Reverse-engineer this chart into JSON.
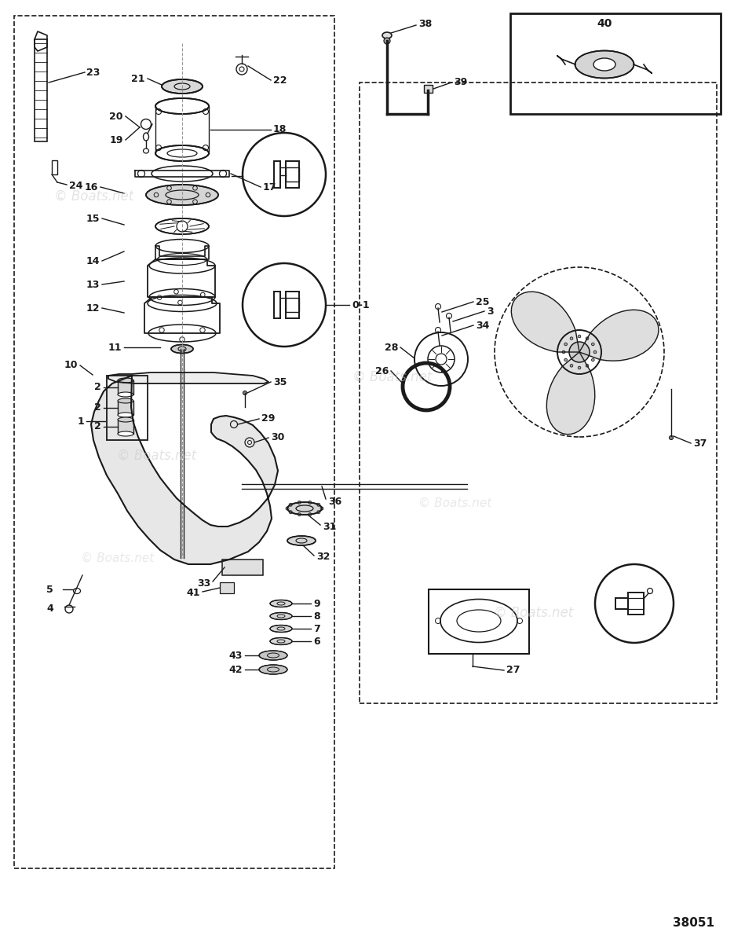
{
  "background_color": "#ffffff",
  "line_color": "#1a1a1a",
  "watermark_color": "#c8c8c8",
  "watermark_text": "© Boats.net",
  "part_number_bottom_right": "38051",
  "fig_width": 9.35,
  "fig_height": 12.0,
  "dpi": 100
}
